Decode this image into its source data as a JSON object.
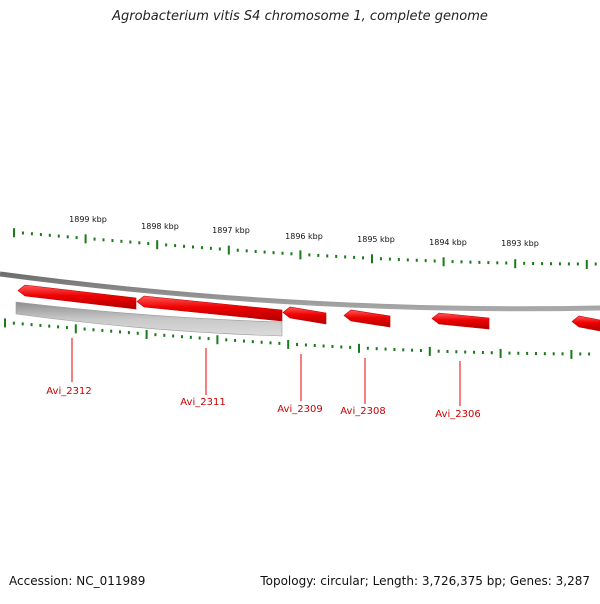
{
  "title": "Agrobacterium vitis S4 chromosome 1, complete genome",
  "footer": {
    "accession_label": "Accession:",
    "accession": "NC_011989",
    "topology_label": "Topology:",
    "topology": "circular",
    "length_label": "Length:",
    "length": "3,726,375 bp",
    "genes_label": "Genes:",
    "genes": "3,287"
  },
  "ticks": [
    {
      "label": "1899 kbp"
    },
    {
      "label": "1898 kbp"
    },
    {
      "label": "1897 kbp"
    },
    {
      "label": "1896 kbp"
    },
    {
      "label": "1895 kbp"
    },
    {
      "label": "1894 kbp"
    },
    {
      "label": "1893 kbp"
    }
  ],
  "genes": [
    {
      "label": "Avi_2312",
      "strand": "reverse"
    },
    {
      "label": "Avi_2311",
      "strand": "reverse"
    },
    {
      "label": "Avi_2309",
      "strand": "reverse"
    },
    {
      "label": "Avi_2308",
      "strand": "reverse"
    },
    {
      "label": "Avi_2306",
      "strand": "reverse"
    },
    {
      "label": "",
      "strand": "reverse"
    }
  ],
  "colors": {
    "gene": "#ee0000",
    "gene_label": "#cc0000",
    "tick": "#1a7a1a",
    "backbone": "#8a8a8a",
    "feature_grey": "#b4b4b4"
  }
}
